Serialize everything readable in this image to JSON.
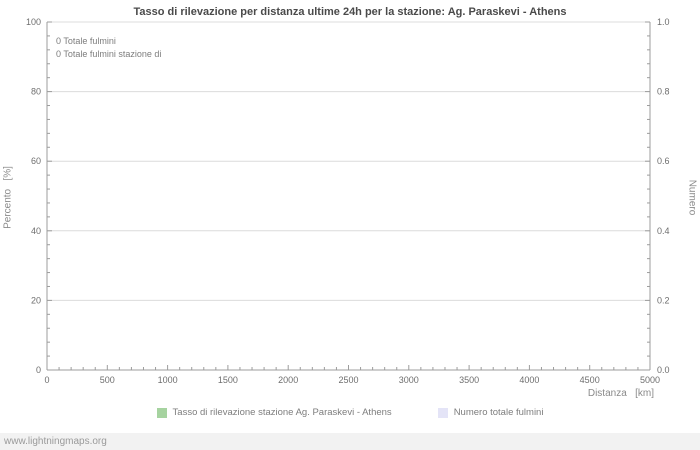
{
  "chart_data": {
    "type": "line",
    "title": "Tasso di rilevazione per distanza ultime 24h per la stazione: Ag. Paraskevi - Athens",
    "xlabel": "Distanza   [km]",
    "ylabel_left": "Percento   [%]",
    "ylabel_right": "Numero",
    "xlim": [
      0,
      5000
    ],
    "x_ticks": [
      0,
      500,
      1000,
      1500,
      2000,
      2500,
      3000,
      3500,
      4000,
      4500,
      5000
    ],
    "ylim_left": [
      0,
      100
    ],
    "y_left_ticks": [
      0,
      20,
      40,
      60,
      80,
      100
    ],
    "ylim_right": [
      0,
      1
    ],
    "y_right_ticks": [
      "0.0",
      "0.2",
      "0.4",
      "0.6",
      "0.8",
      "1.0"
    ],
    "grid": "horizontal",
    "legend_position": "bottom",
    "annotations": [
      "0 Totale fulmini",
      "0 Totale fulmini stazione di"
    ],
    "totals": {
      "totale_fulmini": 0,
      "totale_fulmini_stazione": 0
    },
    "series": [
      {
        "name": "Tasso di rilevazione stazione Ag. Paraskevi - Athens",
        "color": "#a6d3a0",
        "values": []
      },
      {
        "name": "Numero totale fulmini",
        "color": "#e4e4f7",
        "values": []
      }
    ]
  },
  "footer": {
    "watermark": "www.lightningmaps.org"
  }
}
